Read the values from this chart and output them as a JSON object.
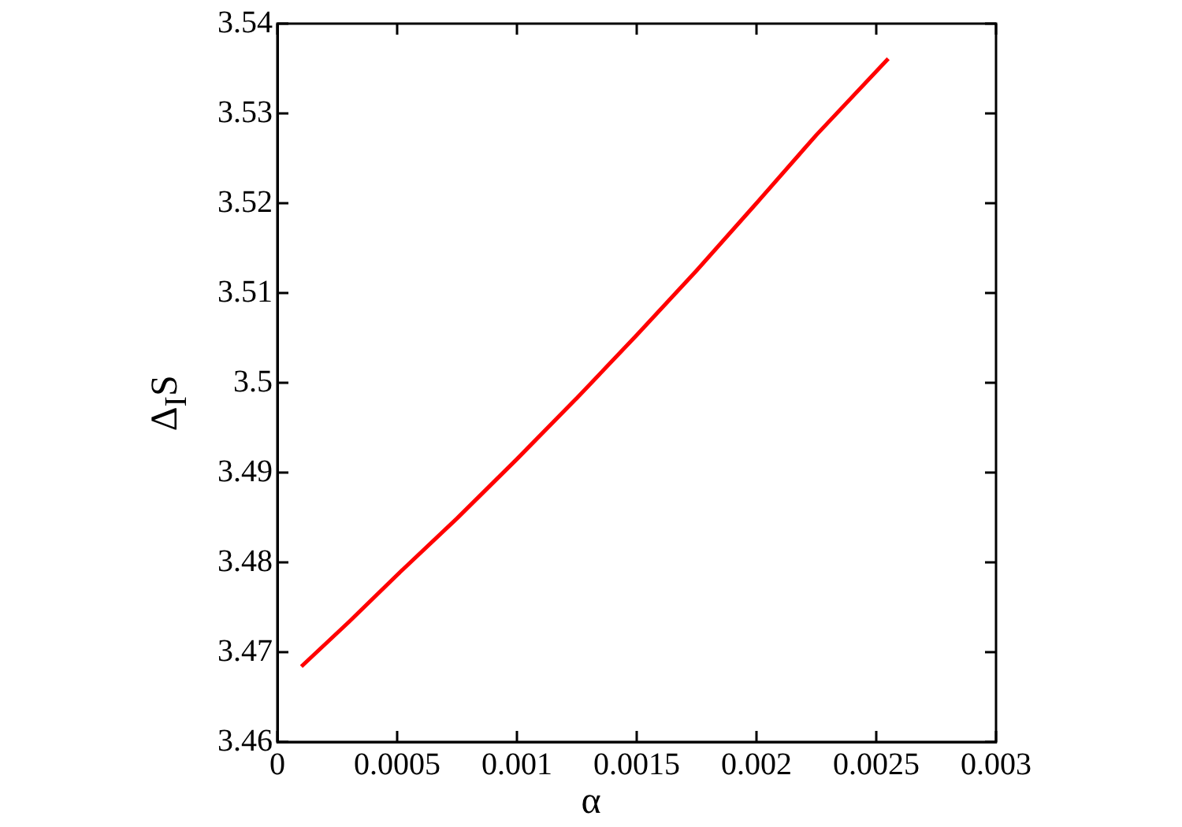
{
  "chart_data": {
    "type": "line",
    "xlabel": "α",
    "ylabel": "Δ$_{I}$S",
    "x": [
      0.0001,
      0.0003,
      0.0005,
      0.00075,
      0.001,
      0.00125,
      0.0015,
      0.00175,
      0.002,
      0.00225,
      0.00255
    ],
    "series": [
      {
        "color": "#ff0000",
        "values": [
          3.4684,
          3.4734,
          3.4786,
          3.4849,
          3.4915,
          3.4983,
          3.5053,
          3.5125,
          3.52,
          3.5276,
          3.5361
        ]
      }
    ],
    "xlim": [
      0,
      0.003
    ],
    "xticks": [
      0,
      0.0005,
      0.001,
      0.0015,
      0.002,
      0.0025,
      0.003
    ],
    "ylim": [
      3.46,
      3.54
    ],
    "yticks": [
      3.46,
      3.47,
      3.48,
      3.49,
      3.5,
      3.51,
      3.52,
      3.53,
      3.54
    ],
    "grid": false,
    "legend": false,
    "marker": "none",
    "line_style": "solid"
  }
}
